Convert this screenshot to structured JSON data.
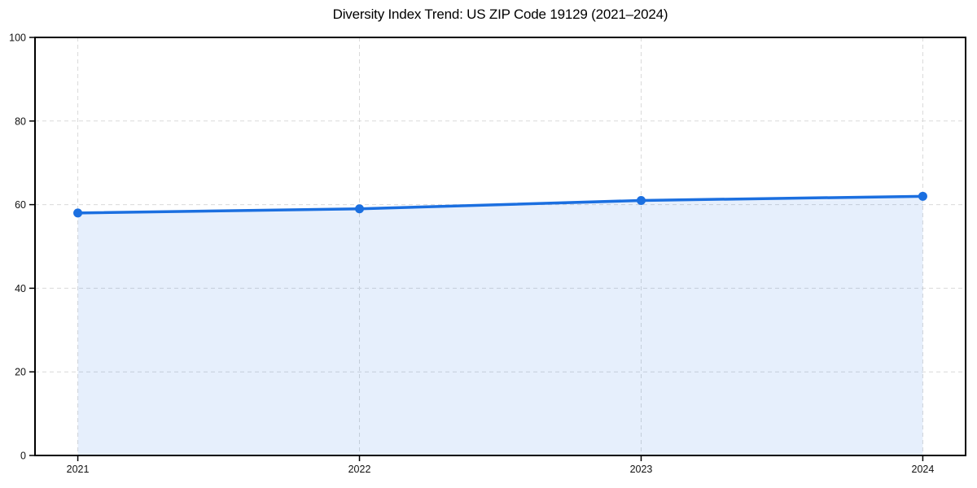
{
  "chart_data": {
    "type": "area",
    "title": "Diversity Index Trend: US ZIP Code 19129 (2021–2024)",
    "categories": [
      "2021",
      "2022",
      "2023",
      "2024"
    ],
    "values": [
      58,
      59,
      61,
      62
    ],
    "xlabel": "",
    "ylabel": "",
    "ylim": [
      0,
      100
    ],
    "yticks": [
      0,
      20,
      40,
      60,
      80,
      100
    ],
    "grid": true,
    "grid_style": "dashed",
    "legend": "none",
    "colors": {
      "line": "#1b6fe0",
      "fill": "rgba(27,111,224,0.11)",
      "grid": "#d9d9d9",
      "axis": "#000000",
      "tick_text": "#111111"
    }
  }
}
